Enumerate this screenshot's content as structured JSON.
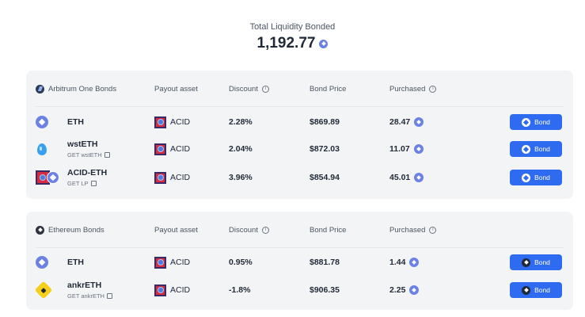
{
  "header": {
    "label": "Total Liquidity Bonded",
    "total": "1,192.77",
    "icon": "ethereum-icon"
  },
  "columns": {
    "payout": "Payout asset",
    "discount": "Discount",
    "price": "Bond Price",
    "purchased": "Purchased"
  },
  "arbitrum": {
    "title": "Arbitrum One Bonds",
    "rows": [
      {
        "asset": "ETH",
        "sub": "",
        "payout": "ACID",
        "discount": "2.28%",
        "price": "$869.89",
        "purchased": "28.47",
        "button": "Bond"
      },
      {
        "asset": "wstETH",
        "sub": "GET wstETH",
        "payout": "ACID",
        "discount": "2.04%",
        "price": "$872.03",
        "purchased": "11.07",
        "button": "Bond"
      },
      {
        "asset": "ACID-ETH",
        "sub": "GET LP",
        "payout": "ACID",
        "discount": "3.96%",
        "price": "$854.94",
        "purchased": "45.01",
        "button": "Bond"
      }
    ]
  },
  "ethereum": {
    "title": "Ethereum Bonds",
    "rows": [
      {
        "asset": "ETH",
        "sub": "",
        "payout": "ACID",
        "discount": "0.95%",
        "price": "$881.78",
        "purchased": "1.44",
        "button": "Bond"
      },
      {
        "asset": "ankrETH",
        "sub": "GET ankrETH",
        "payout": "ACID",
        "discount": "-1.8%",
        "price": "$906.35",
        "purchased": "2.25",
        "button": "Bond"
      }
    ]
  },
  "colors": {
    "accent": "#2f6bf0",
    "panel": "#f3f4f6",
    "eth": "#6b82e4"
  }
}
